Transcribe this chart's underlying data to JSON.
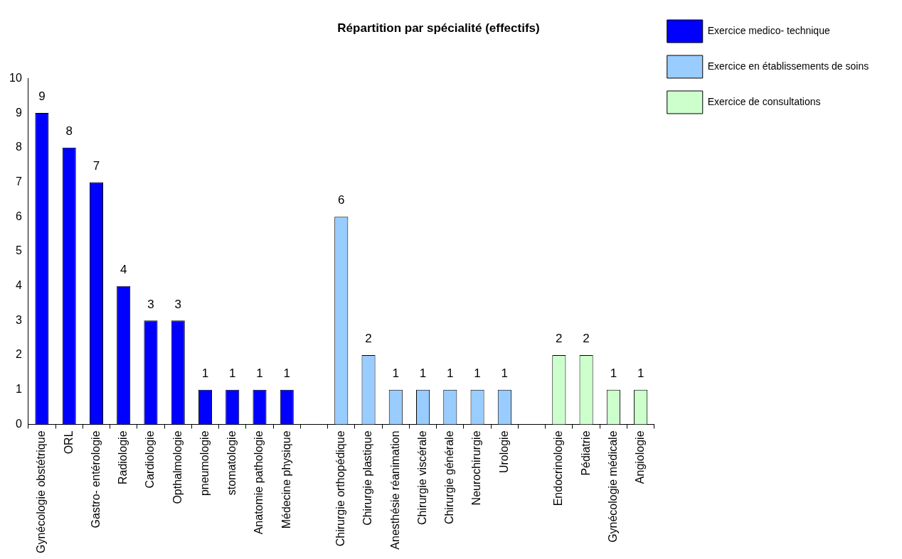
{
  "chart_data": {
    "type": "bar",
    "title": "Répartition par spécialité (effectifs)",
    "categories": [
      "Gynécologie obstétrique",
      "ORL",
      "Gastro- entérologie",
      "Radiologie",
      "Cardiologie",
      "Opthalmologie",
      "pneumologie",
      "stomatologie",
      "Anatomie pathologie",
      "Médecine physique",
      null,
      "Chirurgie orthopédique",
      "Chirurgie plastique",
      "Anesthésie réanimation",
      "Chirurgie viscérale",
      "Chirurgie générale",
      "Neurochirurgie",
      "Urologie",
      null,
      "Endocrinologie",
      "Pédiatrie",
      "Gynécologie médicale",
      "Angiologie"
    ],
    "series": [
      {
        "name": "Exercice medico- technique",
        "color": "#0000ff",
        "values": [
          9,
          8,
          7,
          4,
          3,
          3,
          1,
          1,
          1,
          1,
          null,
          null,
          null,
          null,
          null,
          null,
          null,
          null,
          null,
          null,
          null,
          null,
          null
        ]
      },
      {
        "name": "Exercice en établissements de soins",
        "color": "#99ccff",
        "values": [
          null,
          null,
          null,
          null,
          null,
          null,
          null,
          null,
          null,
          null,
          null,
          6,
          2,
          1,
          1,
          1,
          1,
          1,
          null,
          null,
          null,
          null,
          null
        ]
      },
      {
        "name": "Exercice de consultations",
        "color": "#ccffcc",
        "values": [
          null,
          null,
          null,
          null,
          null,
          null,
          null,
          null,
          null,
          null,
          null,
          null,
          null,
          null,
          null,
          null,
          null,
          null,
          null,
          2,
          2,
          1,
          1
        ]
      }
    ],
    "ylim": [
      0,
      10
    ],
    "yticks": [
      0,
      1,
      2,
      3,
      4,
      5,
      6,
      7,
      8,
      9,
      10
    ],
    "grid": false,
    "legend": "top right",
    "data_labels": true
  }
}
